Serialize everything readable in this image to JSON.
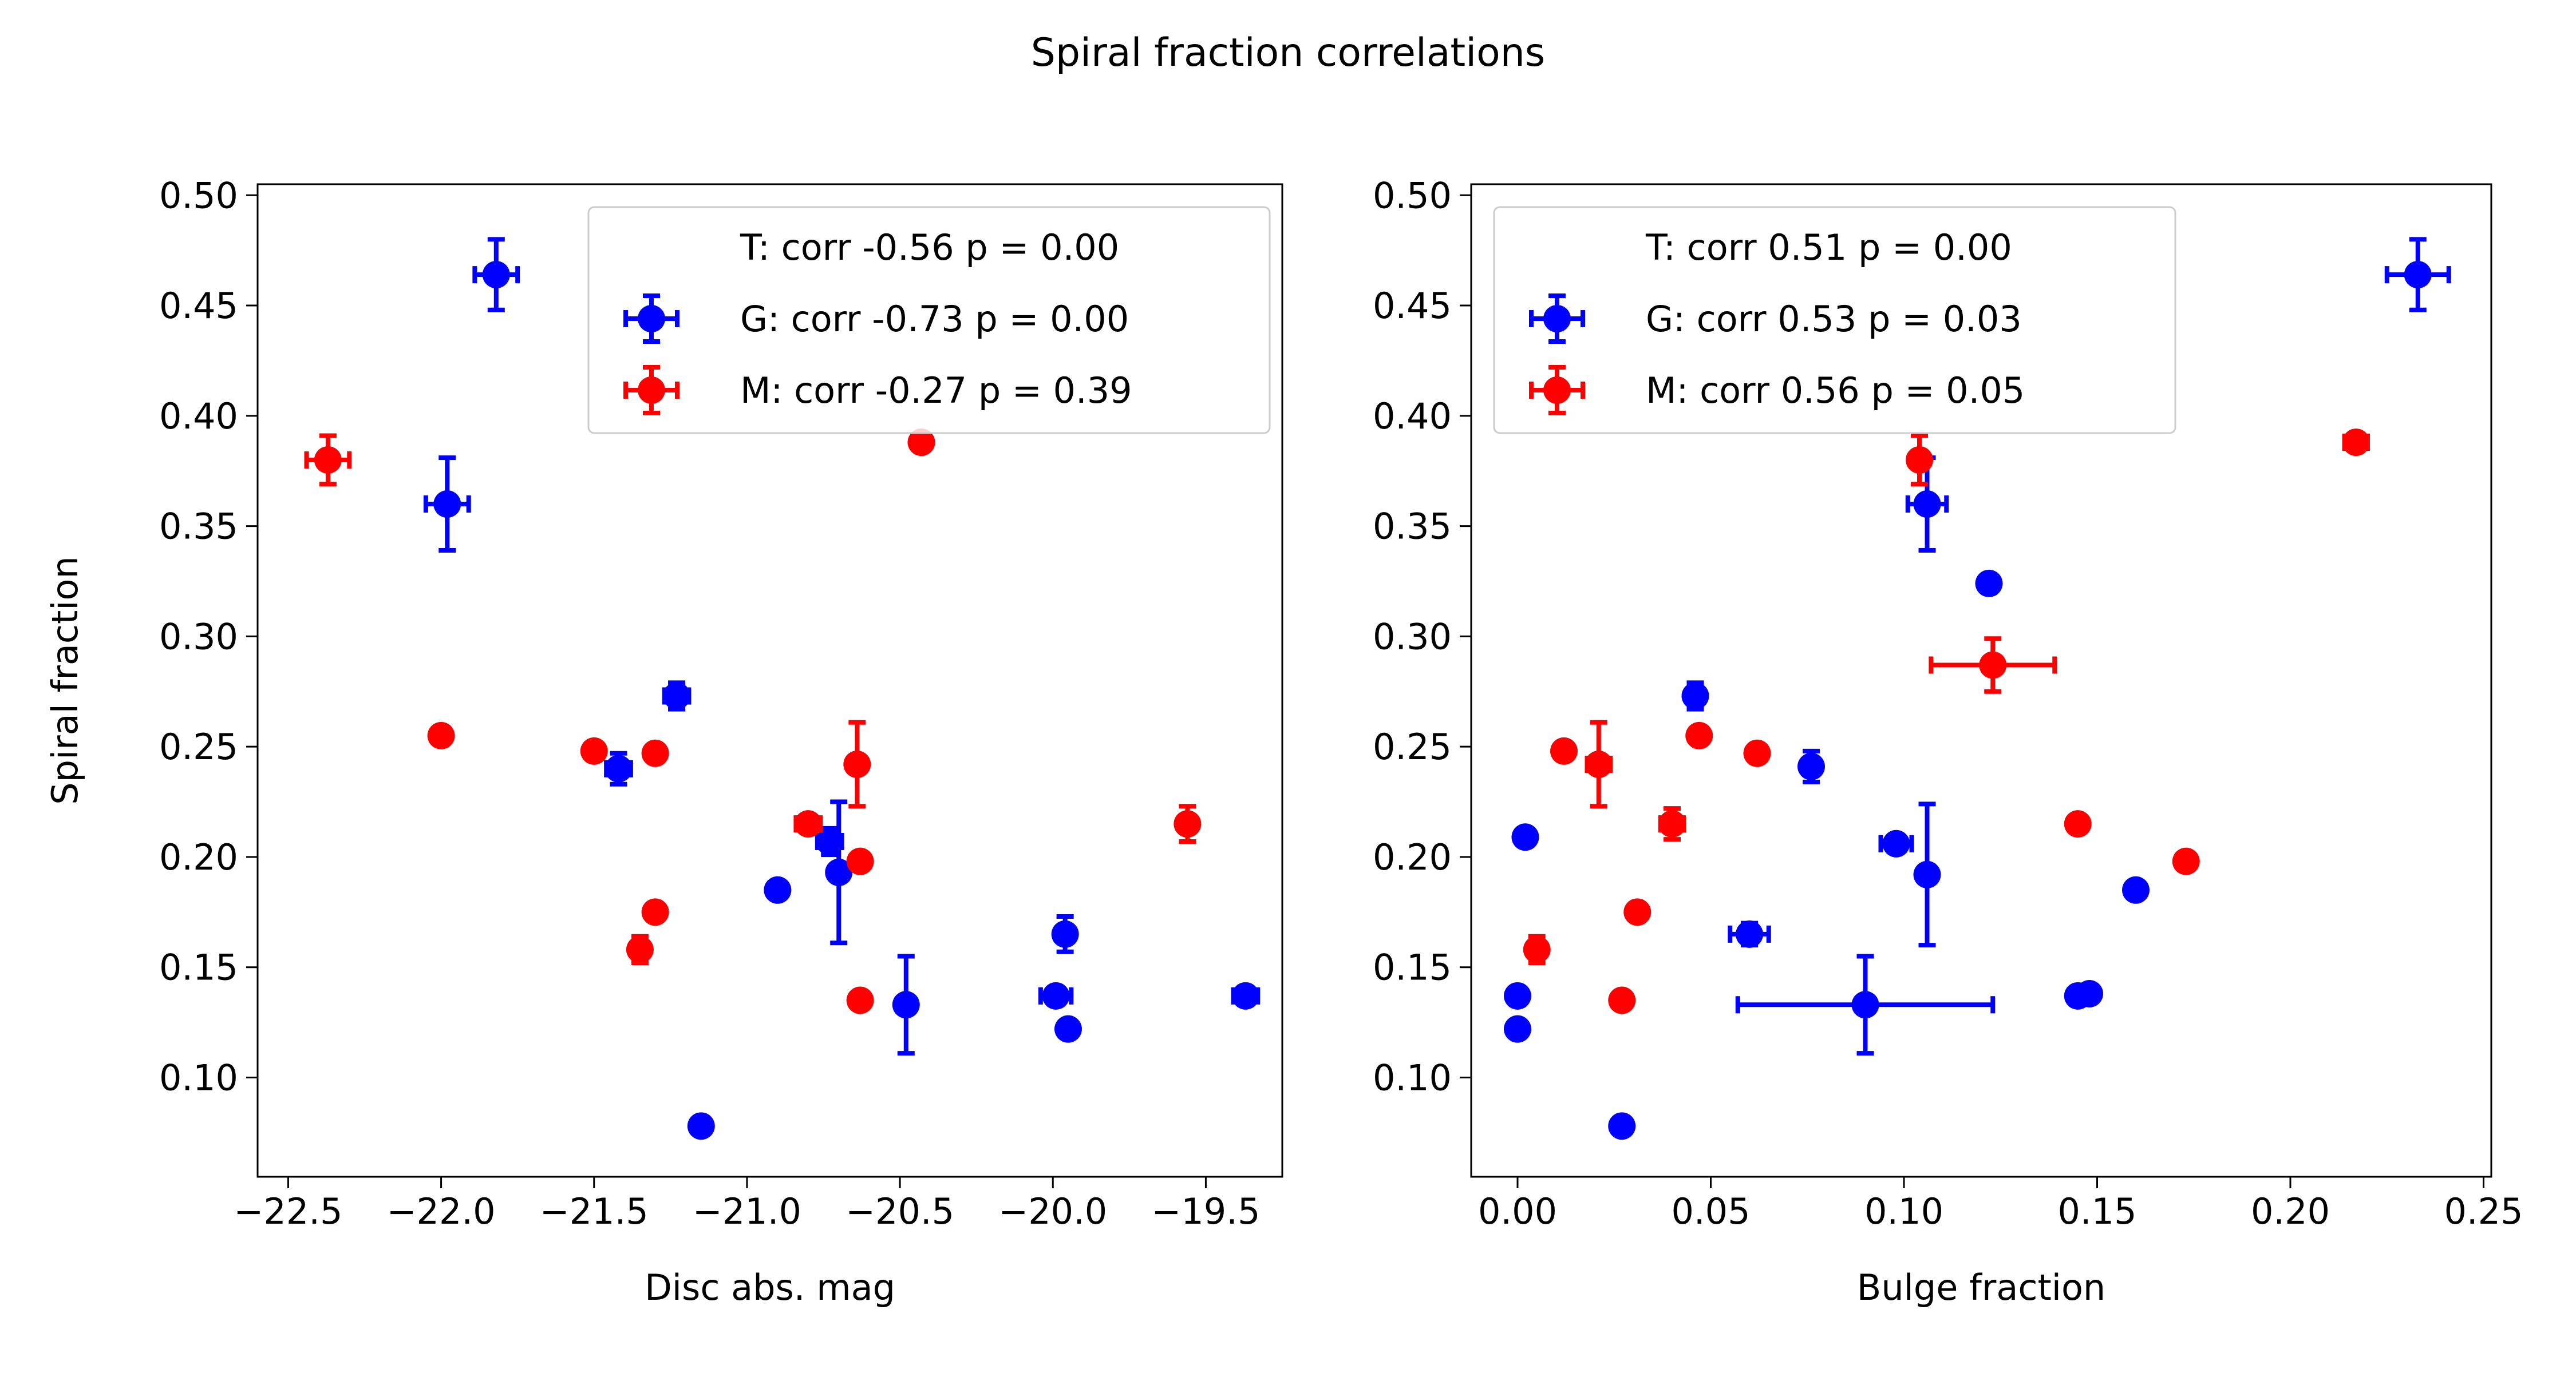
{
  "figure": {
    "title": "Spiral fraction correlations",
    "colors": {
      "G": "#0000ff",
      "M": "#ff0000",
      "axis": "#000000",
      "legend_border": "#cccccc"
    }
  },
  "chart_data": [
    {
      "type": "scatter",
      "title": "",
      "xlabel": "Disc abs. mag",
      "ylabel": "Spiral fraction",
      "xlim": [
        -22.6,
        -19.25
      ],
      "ylim": [
        0.055,
        0.505
      ],
      "xticks": [
        -22.5,
        -22.0,
        -21.5,
        -21.0,
        -20.5,
        -20.0,
        -19.5
      ],
      "xtick_labels": [
        "−22.5",
        "−22.0",
        "−21.5",
        "−21.0",
        "−20.5",
        "−20.0",
        "−19.5"
      ],
      "yticks": [
        0.1,
        0.15,
        0.2,
        0.25,
        0.3,
        0.35,
        0.4,
        0.45,
        0.5
      ],
      "ytick_labels": [
        "0.10",
        "0.15",
        "0.20",
        "0.25",
        "0.30",
        "0.35",
        "0.40",
        "0.45",
        "0.50"
      ],
      "legend": {
        "position": "upper right",
        "entries": [
          {
            "key": "T",
            "label": "T: corr -0.56 p = 0.00",
            "marker": false
          },
          {
            "key": "G",
            "label": "G: corr -0.73 p = 0.00",
            "marker": true
          },
          {
            "key": "M",
            "label": "M: corr -0.27 p = 0.39",
            "marker": true
          }
        ]
      },
      "series": [
        {
          "name": "G",
          "color": "#0000ff",
          "points": [
            {
              "x": -21.82,
              "y": 0.464,
              "xerr": 0.07,
              "yerr": 0.016
            },
            {
              "x": -21.98,
              "y": 0.36,
              "xerr": 0.07,
              "yerr": 0.021
            },
            {
              "x": -21.23,
              "y": 0.273,
              "xerr": 0.04,
              "yerr": 0.006
            },
            {
              "x": -21.42,
              "y": 0.24,
              "xerr": 0.04,
              "yerr": 0.007
            },
            {
              "x": -20.9,
              "y": 0.185,
              "xerr": 0,
              "yerr": 0
            },
            {
              "x": -20.73,
              "y": 0.207,
              "xerr": 0.04,
              "yerr": 0.006
            },
            {
              "x": -20.7,
              "y": 0.193,
              "xerr": 0,
              "yerr": 0.032
            },
            {
              "x": -20.48,
              "y": 0.133,
              "xerr": 0,
              "yerr": 0.022
            },
            {
              "x": -19.96,
              "y": 0.165,
              "xerr": 0,
              "yerr": 0.008
            },
            {
              "x": -19.99,
              "y": 0.137,
              "xerr": 0.05,
              "yerr": 0
            },
            {
              "x": -19.95,
              "y": 0.122,
              "xerr": 0,
              "yerr": 0
            },
            {
              "x": -19.37,
              "y": 0.137,
              "xerr": 0.04,
              "yerr": 0.004
            },
            {
              "x": -21.15,
              "y": 0.078,
              "xerr": 0,
              "yerr": 0
            }
          ]
        },
        {
          "name": "M",
          "color": "#ff0000",
          "points": [
            {
              "x": -22.37,
              "y": 0.38,
              "xerr": 0.07,
              "yerr": 0.011
            },
            {
              "x": -22.0,
              "y": 0.255,
              "xerr": 0,
              "yerr": 0
            },
            {
              "x": -21.5,
              "y": 0.248,
              "xerr": 0,
              "yerr": 0
            },
            {
              "x": -21.3,
              "y": 0.247,
              "xerr": 0,
              "yerr": 0
            },
            {
              "x": -21.3,
              "y": 0.175,
              "xerr": 0,
              "yerr": 0
            },
            {
              "x": -21.35,
              "y": 0.158,
              "xerr": 0,
              "yerr": 0.006
            },
            {
              "x": -20.43,
              "y": 0.388,
              "xerr": 0,
              "yerr": 0
            },
            {
              "x": -20.8,
              "y": 0.215,
              "xerr": 0.04,
              "yerr": 0
            },
            {
              "x": -20.64,
              "y": 0.242,
              "xerr": 0,
              "yerr": 0.019
            },
            {
              "x": -20.63,
              "y": 0.198,
              "xerr": 0,
              "yerr": 0
            },
            {
              "x": -20.63,
              "y": 0.135,
              "xerr": 0,
              "yerr": 0
            },
            {
              "x": -19.56,
              "y": 0.215,
              "xerr": 0,
              "yerr": 0.008
            }
          ]
        }
      ]
    },
    {
      "type": "scatter",
      "title": "",
      "xlabel": "Bulge fraction",
      "ylabel": "",
      "xlim": [
        -0.012,
        0.252
      ],
      "ylim": [
        0.055,
        0.505
      ],
      "xticks": [
        0.0,
        0.05,
        0.1,
        0.15,
        0.2,
        0.25
      ],
      "xtick_labels": [
        "0.00",
        "0.05",
        "0.10",
        "0.15",
        "0.20",
        "0.25"
      ],
      "yticks": [
        0.1,
        0.15,
        0.2,
        0.25,
        0.3,
        0.35,
        0.4,
        0.45,
        0.5
      ],
      "ytick_labels": [
        "0.10",
        "0.15",
        "0.20",
        "0.25",
        "0.30",
        "0.35",
        "0.40",
        "0.45",
        "0.50"
      ],
      "legend": {
        "position": "upper left",
        "entries": [
          {
            "key": "T",
            "label": "T: corr 0.51 p = 0.00",
            "marker": false
          },
          {
            "key": "G",
            "label": "G: corr 0.53 p = 0.03",
            "marker": true
          },
          {
            "key": "M",
            "label": "M: corr 0.56 p = 0.05",
            "marker": true
          }
        ]
      },
      "series": [
        {
          "name": "G",
          "color": "#0000ff",
          "points": [
            {
              "x": 0.233,
              "y": 0.464,
              "xerr": 0.008,
              "yerr": 0.016
            },
            {
              "x": 0.106,
              "y": 0.36,
              "xerr": 0.005,
              "yerr": 0.021
            },
            {
              "x": 0.122,
              "y": 0.324,
              "xerr": 0,
              "yerr": 0
            },
            {
              "x": 0.046,
              "y": 0.273,
              "xerr": 0,
              "yerr": 0.006
            },
            {
              "x": 0.076,
              "y": 0.241,
              "xerr": 0,
              "yerr": 0.007
            },
            {
              "x": 0.002,
              "y": 0.209,
              "xerr": 0,
              "yerr": 0
            },
            {
              "x": 0.098,
              "y": 0.206,
              "xerr": 0.004,
              "yerr": 0
            },
            {
              "x": 0.106,
              "y": 0.192,
              "xerr": 0,
              "yerr": 0.032
            },
            {
              "x": 0.16,
              "y": 0.185,
              "xerr": 0,
              "yerr": 0
            },
            {
              "x": 0.06,
              "y": 0.165,
              "xerr": 0.005,
              "yerr": 0.005
            },
            {
              "x": 0.0,
              "y": 0.137,
              "xerr": 0,
              "yerr": 0
            },
            {
              "x": 0.145,
              "y": 0.137,
              "xerr": 0,
              "yerr": 0
            },
            {
              "x": 0.148,
              "y": 0.138,
              "xerr": 0,
              "yerr": 0
            },
            {
              "x": 0.09,
              "y": 0.133,
              "xerr": 0.033,
              "yerr": 0.022
            },
            {
              "x": 0.0,
              "y": 0.122,
              "xerr": 0,
              "yerr": 0
            },
            {
              "x": 0.027,
              "y": 0.078,
              "xerr": 0,
              "yerr": 0
            }
          ]
        },
        {
          "name": "M",
          "color": "#ff0000",
          "points": [
            {
              "x": 0.217,
              "y": 0.388,
              "xerr": 0.003,
              "yerr": 0
            },
            {
              "x": 0.104,
              "y": 0.38,
              "xerr": 0,
              "yerr": 0.011
            },
            {
              "x": 0.123,
              "y": 0.287,
              "xerr": 0.016,
              "yerr": 0.012
            },
            {
              "x": 0.012,
              "y": 0.248,
              "xerr": 0,
              "yerr": 0
            },
            {
              "x": 0.021,
              "y": 0.242,
              "xerr": 0.003,
              "yerr": 0.019
            },
            {
              "x": 0.047,
              "y": 0.255,
              "xerr": 0,
              "yerr": 0
            },
            {
              "x": 0.062,
              "y": 0.247,
              "xerr": 0,
              "yerr": 0
            },
            {
              "x": 0.04,
              "y": 0.215,
              "xerr": 0.003,
              "yerr": 0.007
            },
            {
              "x": 0.145,
              "y": 0.215,
              "xerr": 0,
              "yerr": 0
            },
            {
              "x": 0.173,
              "y": 0.198,
              "xerr": 0,
              "yerr": 0
            },
            {
              "x": 0.031,
              "y": 0.175,
              "xerr": 0,
              "yerr": 0
            },
            {
              "x": 0.005,
              "y": 0.158,
              "xerr": 0,
              "yerr": 0.006
            },
            {
              "x": 0.027,
              "y": 0.135,
              "xerr": 0,
              "yerr": 0
            }
          ]
        }
      ]
    }
  ]
}
